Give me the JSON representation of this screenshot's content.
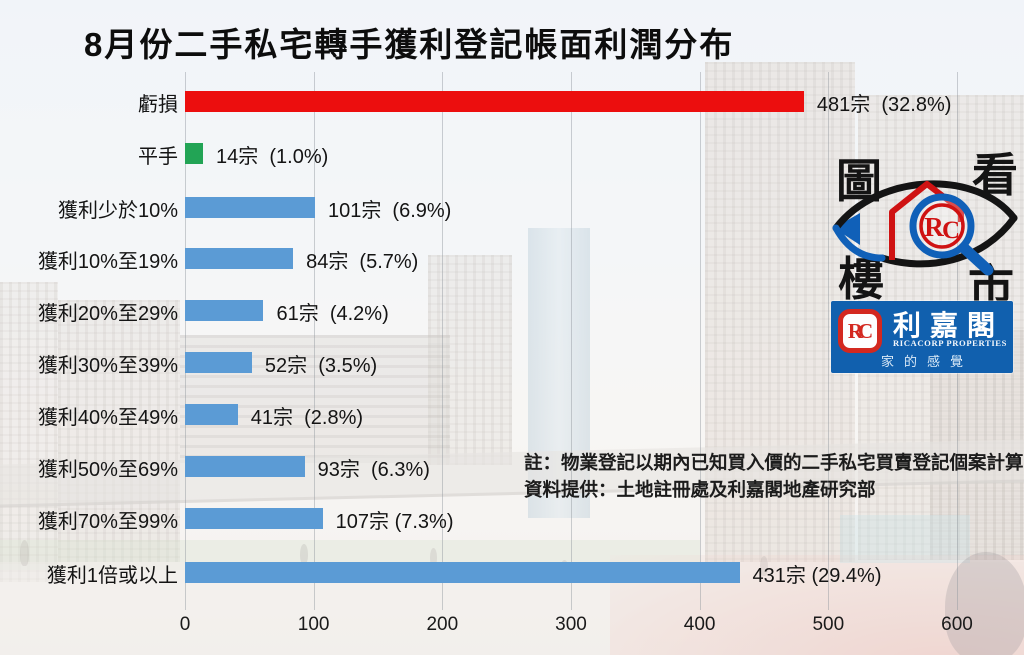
{
  "title": "8月份二手私宅轉手獲利登記帳面利潤分布",
  "chart_data": {
    "type": "bar",
    "orientation": "horizontal",
    "title": "8月份二手私宅轉手獲利登記帳面利潤分布",
    "categories": [
      "虧損",
      "平手",
      "獲利少於10%",
      "獲利10%至19%",
      "獲利20%至29%",
      "獲利30%至39%",
      "獲利40%至49%",
      "獲利50%至69%",
      "獲利70%至99%",
      "獲利1倍或以上"
    ],
    "values": [
      481,
      14,
      101,
      84,
      61,
      52,
      41,
      93,
      107,
      431
    ],
    "percentages": [
      32.8,
      1.0,
      6.9,
      5.7,
      4.2,
      3.5,
      2.8,
      6.3,
      7.3,
      29.4
    ],
    "data_labels": [
      "481宗  (32.8%)",
      "14宗  (1.0%)",
      "101宗  (6.9%)",
      "84宗  (5.7%)",
      "61宗  (4.2%)",
      "52宗  (3.5%)",
      "41宗  (2.8%)",
      "93宗  (6.3%)",
      "107宗 (7.3%)",
      "431宗 (29.4%)"
    ],
    "bar_colors": [
      "#ec0e0e",
      "#22a455",
      "#5b9bd5",
      "#5b9bd5",
      "#5b9bd5",
      "#5b9bd5",
      "#5b9bd5",
      "#5b9bd5",
      "#5b9bd5",
      "#5b9bd5"
    ],
    "unit": "宗",
    "xlim": [
      0,
      600
    ],
    "x_ticks": [
      "0",
      "100",
      "200",
      "300",
      "400",
      "500",
      "600"
    ],
    "grid": true,
    "legend": "none"
  },
  "notes": {
    "line1": "註：物業登記以期內已知買入價的二手私宅買賣登記個案計算",
    "line2": "資料提供：土地註冊處及利嘉閣地產研究部"
  },
  "logos": {
    "eye": {
      "top_left": "圖",
      "top_right": "看",
      "bottom_left": "樓",
      "bottom_right": "市",
      "monogram": "RC",
      "black": "#141414",
      "blue": "#1060b8",
      "red": "#cf1212"
    },
    "ricacorp": {
      "monogram": "RC",
      "name_cn": "利嘉閣",
      "name_en": "Ricacorp Properties",
      "slogan": "家的感覺",
      "blue": "#1160ae",
      "red": "#d3281f"
    }
  }
}
